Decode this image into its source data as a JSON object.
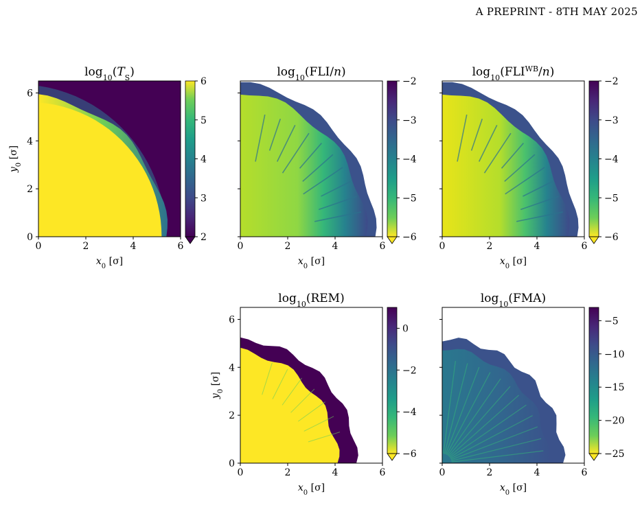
{
  "header": {
    "running_head": "A PREPRINT - 8TH MAY 2025"
  },
  "chart_data": [
    {
      "type": "heatmap",
      "title": "log₁₀(T_S)",
      "xlabel": "x₀ [σ]",
      "ylabel": "y₀ [σ]",
      "xlim": [
        0,
        6
      ],
      "ylim": [
        0,
        6.5
      ],
      "x_ticks": [
        "0",
        "2",
        "4",
        "6"
      ],
      "y_ticks": [
        "0",
        "2",
        "4",
        "6"
      ],
      "colorbar": {
        "range": [
          2,
          6
        ],
        "ticks": [
          "6",
          "5",
          "4",
          "3",
          "2"
        ],
        "colormap": "viridis",
        "reversed": false,
        "extend": "min"
      }
    },
    {
      "type": "heatmap",
      "title": "log₁₀(FLI/n)",
      "xlabel": "x₀ [σ]",
      "ylabel": "",
      "xlim": [
        0,
        6
      ],
      "ylim": [
        0,
        6.5
      ],
      "x_ticks": [
        "0",
        "2",
        "4",
        "6"
      ],
      "y_ticks": [],
      "colorbar": {
        "range": [
          -6,
          -2
        ],
        "ticks": [
          "−2",
          "−3",
          "−4",
          "−5",
          "−6"
        ],
        "colormap": "viridis",
        "reversed": true,
        "extend": "min"
      }
    },
    {
      "type": "heatmap",
      "title": "log₁₀(FLI^WB/n)",
      "xlabel": "x₀ [σ]",
      "ylabel": "",
      "xlim": [
        0,
        6
      ],
      "ylim": [
        0,
        6.5
      ],
      "x_ticks": [
        "0",
        "2",
        "4",
        "6"
      ],
      "y_ticks": [],
      "colorbar": {
        "range": [
          -6,
          -2
        ],
        "ticks": [
          "−2",
          "−3",
          "−4",
          "−5",
          "−6"
        ],
        "colormap": "viridis",
        "reversed": true,
        "extend": "min"
      }
    },
    {
      "type": "heatmap",
      "title": "log₁₀(REM)",
      "xlabel": "x₀ [σ]",
      "ylabel": "y₀ [σ]",
      "xlim": [
        0,
        6
      ],
      "ylim": [
        0,
        6.5
      ],
      "x_ticks": [
        "0",
        "2",
        "4",
        "6"
      ],
      "y_ticks": [
        "0",
        "2",
        "4",
        "6"
      ],
      "colorbar": {
        "range": [
          -6,
          1
        ],
        "ticks": [
          "0",
          "−2",
          "−4",
          "−6"
        ],
        "colormap": "viridis",
        "reversed": true,
        "extend": "min"
      }
    },
    {
      "type": "heatmap",
      "title": "log₁₀(FMA)",
      "xlabel": "x₀ [σ]",
      "ylabel": "",
      "xlim": [
        0,
        6
      ],
      "ylim": [
        0,
        6.5
      ],
      "x_ticks": [
        "0",
        "2",
        "4",
        "6"
      ],
      "y_ticks": [],
      "colorbar": {
        "range": [
          -25,
          -3
        ],
        "ticks": [
          "−5",
          "−10",
          "−15",
          "−20",
          "−25"
        ],
        "colormap": "viridis",
        "reversed": true,
        "extend": "min"
      }
    }
  ]
}
